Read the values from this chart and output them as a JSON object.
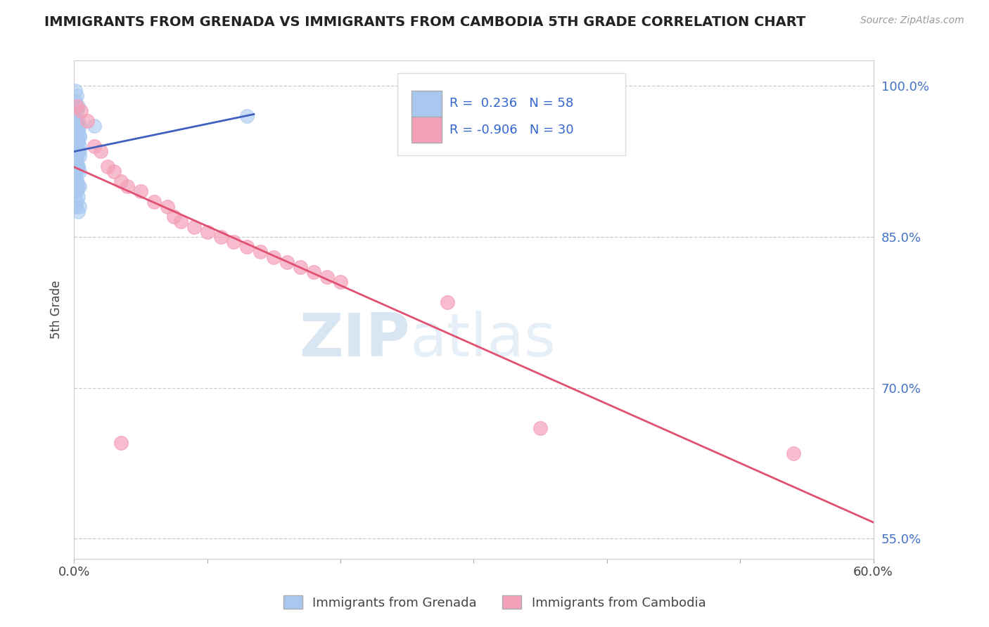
{
  "title": "IMMIGRANTS FROM GRENADA VS IMMIGRANTS FROM CAMBODIA 5TH GRADE CORRELATION CHART",
  "source": "Source: ZipAtlas.com",
  "ylabel": "5th Grade",
  "xlim": [
    0.0,
    0.6
  ],
  "ylim": [
    0.53,
    1.025
  ],
  "ytick_vals": [
    0.55,
    0.7,
    0.85,
    1.0
  ],
  "ytick_labels": [
    "55.0%",
    "70.0%",
    "85.0%",
    "100.0%"
  ],
  "xtick_vals": [
    0.0,
    0.1,
    0.2,
    0.3,
    0.4,
    0.5,
    0.6
  ],
  "xtick_labels": [
    "0.0%",
    "",
    "",
    "",
    "",
    "",
    "60.0%"
  ],
  "legend_blue_r": "0.236",
  "legend_blue_n": "58",
  "legend_pink_r": "-0.906",
  "legend_pink_n": "30",
  "blue_color": "#A8C8F0",
  "pink_color": "#F4A0B8",
  "blue_line_color": "#4060C0",
  "pink_line_color": "#E05070",
  "watermark_zip": "ZIP",
  "watermark_atlas": "atlas",
  "grenada_x": [
    0.001,
    0.002,
    0.001,
    0.003,
    0.002,
    0.001,
    0.003,
    0.002,
    0.004,
    0.002,
    0.001,
    0.003,
    0.002,
    0.001,
    0.004,
    0.002,
    0.001,
    0.003,
    0.002,
    0.004,
    0.001,
    0.002,
    0.003,
    0.002,
    0.001,
    0.003,
    0.002,
    0.004,
    0.001,
    0.003,
    0.002,
    0.003,
    0.004,
    0.002,
    0.001,
    0.003,
    0.004,
    0.002,
    0.003,
    0.002,
    0.001,
    0.002,
    0.004,
    0.002,
    0.003,
    0.001,
    0.002,
    0.003,
    0.004,
    0.002,
    0.13,
    0.001,
    0.002,
    0.003,
    0.004,
    0.001,
    0.002,
    0.015
  ],
  "grenada_y": [
    0.995,
    0.99,
    0.985,
    0.98,
    0.975,
    0.97,
    0.965,
    0.96,
    0.96,
    0.955,
    0.95,
    0.945,
    0.94,
    0.94,
    0.935,
    0.93,
    0.925,
    0.92,
    0.92,
    0.915,
    0.91,
    0.905,
    0.9,
    0.9,
    0.895,
    0.89,
    0.885,
    0.88,
    0.88,
    0.875,
    0.96,
    0.955,
    0.95,
    0.945,
    0.94,
    0.935,
    0.93,
    0.925,
    0.92,
    0.915,
    0.91,
    0.905,
    0.9,
    0.895,
    0.96,
    0.955,
    0.95,
    0.945,
    0.94,
    0.935,
    0.97,
    0.965,
    0.96,
    0.955,
    0.95,
    0.945,
    0.94,
    0.96
  ],
  "cambodia_x": [
    0.002,
    0.005,
    0.01,
    0.015,
    0.02,
    0.025,
    0.03,
    0.035,
    0.04,
    0.05,
    0.06,
    0.07,
    0.075,
    0.08,
    0.09,
    0.1,
    0.11,
    0.12,
    0.13,
    0.14,
    0.15,
    0.16,
    0.17,
    0.18,
    0.19,
    0.2,
    0.28,
    0.35,
    0.54,
    0.035
  ],
  "cambodia_y": [
    0.98,
    0.975,
    0.965,
    0.94,
    0.935,
    0.92,
    0.915,
    0.905,
    0.9,
    0.895,
    0.885,
    0.88,
    0.87,
    0.865,
    0.86,
    0.855,
    0.85,
    0.845,
    0.84,
    0.835,
    0.83,
    0.825,
    0.82,
    0.815,
    0.81,
    0.805,
    0.785,
    0.66,
    0.635,
    0.645
  ]
}
